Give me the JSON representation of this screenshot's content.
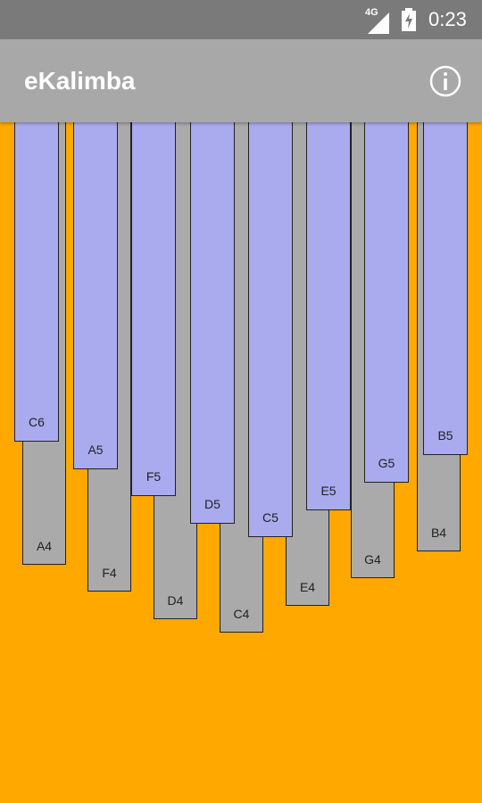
{
  "status_bar": {
    "network": "4G",
    "time": "0:23",
    "icons": [
      "signal-icon",
      "battery-charging-icon"
    ]
  },
  "app_bar": {
    "title": "eKalimba",
    "info_icon": "info-icon"
  },
  "colors": {
    "background": "#FFA800",
    "app_bar": "#a8a8a8",
    "status_bar": "#7a7a7a",
    "upper_keys": "#aaaaee",
    "lower_keys": "#aaaaaa"
  },
  "lower_keys": [
    {
      "note": "A4"
    },
    {
      "note": "F4"
    },
    {
      "note": "D4"
    },
    {
      "note": "C4"
    },
    {
      "note": "E4"
    },
    {
      "note": "G4"
    },
    {
      "note": "B4"
    }
  ],
  "upper_keys": [
    {
      "note": "C6"
    },
    {
      "note": "A5"
    },
    {
      "note": "F5"
    },
    {
      "note": "D5"
    },
    {
      "note": "C5"
    },
    {
      "note": "E5"
    },
    {
      "note": "G5"
    },
    {
      "note": "B5"
    }
  ]
}
